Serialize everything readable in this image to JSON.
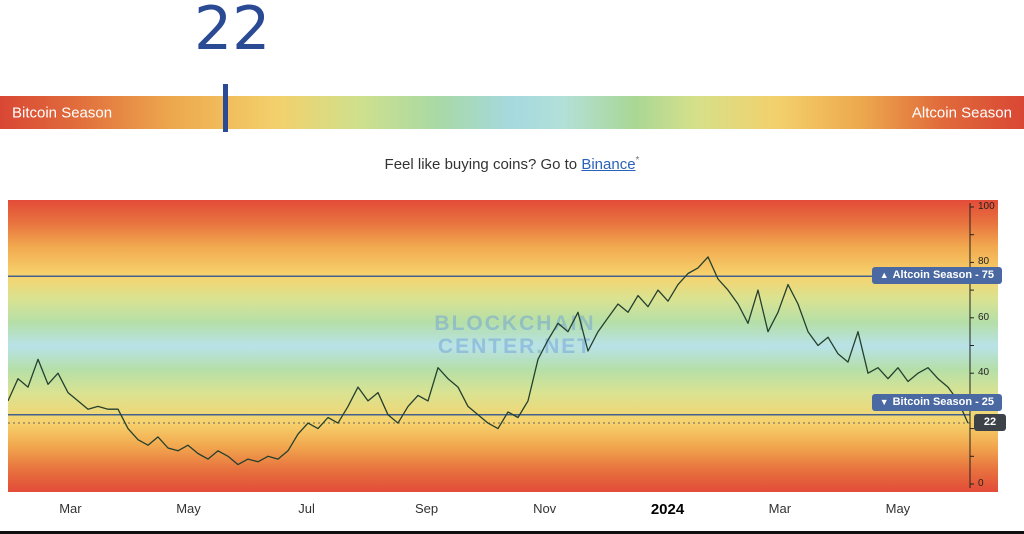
{
  "header": {
    "index_value": "22"
  },
  "season_bar": {
    "left_label": "Bitcoin Season",
    "right_label": "Altcoin Season",
    "marker_value": 22
  },
  "promo": {
    "text_before": "Feel like buying coins? Go to ",
    "link_label": "Binance",
    "asterisk": "*"
  },
  "watermark": {
    "line1": "BLOCKCHAIN",
    "line2": "CENTER.NET"
  },
  "colors": {
    "index_accent": "#2b4a94",
    "threshold_line": "#44608c",
    "badge_bg": "#4a69a2",
    "current_badge_bg": "#3d4248",
    "series_line": "#24402e",
    "watermark": "#7aa6d4"
  },
  "chart_data": {
    "type": "line",
    "ylim": [
      0,
      100
    ],
    "grid": false,
    "legend": "none",
    "badge_separator": "-",
    "y_axis_labels": [
      {
        "value": 100,
        "label": "100"
      },
      {
        "value": 80,
        "label": "80"
      },
      {
        "value": 60,
        "label": "60"
      },
      {
        "value": 40,
        "label": "40"
      },
      {
        "value": 0,
        "label": "0"
      }
    ],
    "x_axis_labels": [
      {
        "label": "Mar",
        "pos": 0.065
      },
      {
        "label": "May",
        "pos": 0.188
      },
      {
        "label": "Jul",
        "pos": 0.311
      },
      {
        "label": "Sep",
        "pos": 0.436
      },
      {
        "label": "Nov",
        "pos": 0.559
      },
      {
        "label": "2024",
        "pos": 0.687,
        "emph": true
      },
      {
        "label": "Mar",
        "pos": 0.804
      },
      {
        "label": "May",
        "pos": 0.927
      }
    ],
    "thresholds": {
      "altcoin": {
        "arrow": "▲",
        "label": "Altcoin Season",
        "value": 75
      },
      "bitcoin": {
        "arrow": "▼",
        "label": "Bitcoin Season",
        "value": 25
      }
    },
    "current": {
      "value": 22
    },
    "values": [
      30,
      38,
      35,
      45,
      36,
      40,
      33,
      30,
      27,
      28,
      27,
      27,
      20,
      16,
      14,
      17,
      13,
      12,
      14,
      11,
      9,
      12,
      10,
      7,
      9,
      8,
      10,
      9,
      12,
      18,
      22,
      20,
      24,
      22,
      28,
      35,
      30,
      33,
      25,
      22,
      28,
      32,
      30,
      42,
      38,
      35,
      28,
      25,
      22,
      20,
      26,
      24,
      30,
      45,
      52,
      58,
      55,
      62,
      48,
      55,
      60,
      65,
      62,
      68,
      64,
      70,
      66,
      72,
      76,
      78,
      82,
      74,
      70,
      65,
      58,
      70,
      55,
      62,
      72,
      65,
      55,
      50,
      53,
      47,
      44,
      55,
      40,
      42,
      38,
      42,
      37,
      40,
      42,
      38,
      35,
      30,
      22
    ]
  }
}
